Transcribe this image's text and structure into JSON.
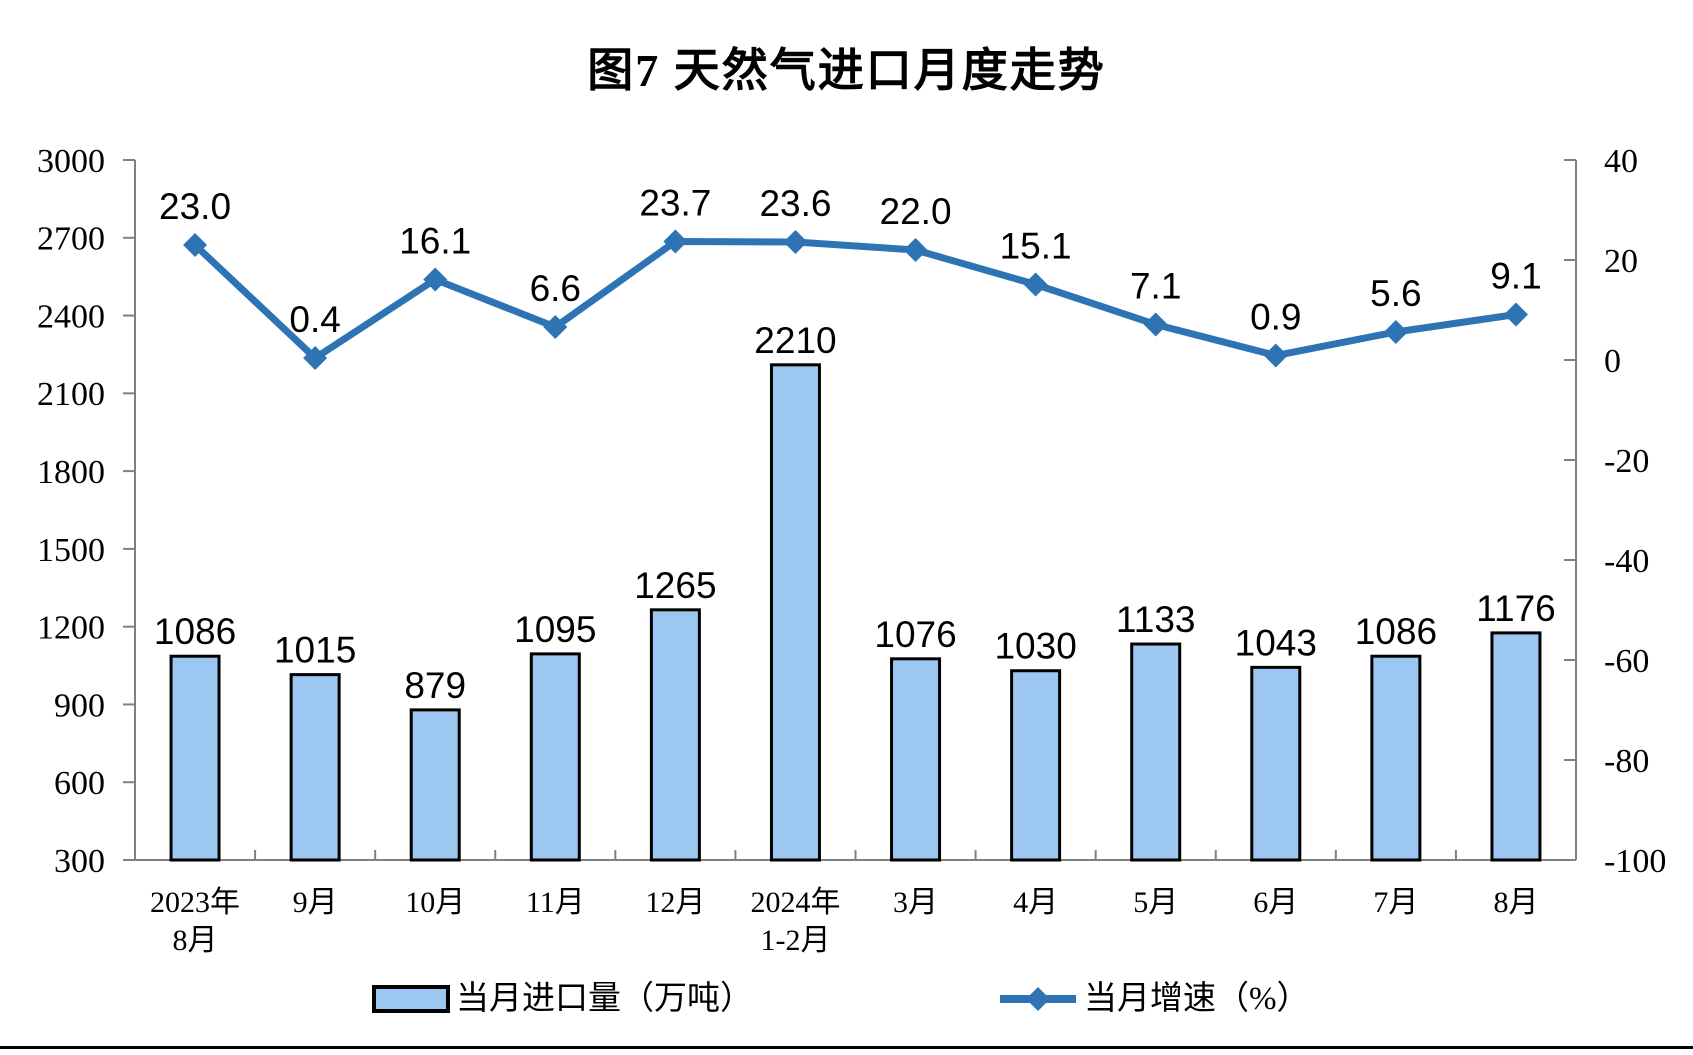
{
  "title": "图7 天然气进口月度走势",
  "legend": {
    "items": [
      {
        "label": "当月进口量（万吨）",
        "swatch": "bar"
      },
      {
        "label": "当月增速（%）",
        "swatch": "line"
      }
    ]
  },
  "chart_data": {
    "type": "combo-bar-line",
    "title": "图7 天然气进口月度走势",
    "grid": false,
    "legend_position": "bottom",
    "categories": [
      [
        "2023年",
        "8月"
      ],
      [
        "9月"
      ],
      [
        "10月"
      ],
      [
        "11月"
      ],
      [
        "12月"
      ],
      [
        "2024年",
        "1-2月"
      ],
      [
        "3月"
      ],
      [
        "4月"
      ],
      [
        "5月"
      ],
      [
        "6月"
      ],
      [
        "7月"
      ],
      [
        "8月"
      ]
    ],
    "left_axis": {
      "min": 300,
      "max": 3000,
      "step": 300,
      "ticks": [
        "3000",
        "2700",
        "2400",
        "2100",
        "1800",
        "1500",
        "1200",
        "900",
        "600",
        "300"
      ]
    },
    "right_axis": {
      "min": -100,
      "max": 40,
      "step": 20,
      "ticks": [
        "40",
        "20",
        "0",
        "-20",
        "-40",
        "-60",
        "-80",
        "-100"
      ]
    },
    "axis_color": "#808080",
    "series": [
      {
        "name": "当月进口量（万吨）",
        "type": "bar",
        "axis": "left",
        "fill": "#9CC7F0",
        "stroke": "#000000",
        "values": [
          1086,
          1015,
          879,
          1095,
          1265,
          2210,
          1076,
          1030,
          1133,
          1043,
          1086,
          1176
        ],
        "labels": [
          "1086",
          "1015",
          "879",
          "1095",
          "1265",
          "2210",
          "1076",
          "1030",
          "1133",
          "1043",
          "1086",
          "1176"
        ]
      },
      {
        "name": "当月增速（%）",
        "type": "line",
        "axis": "right",
        "color": "#2E74B5",
        "values": [
          23.0,
          0.4,
          16.1,
          6.6,
          23.7,
          23.6,
          22.0,
          15.1,
          7.1,
          0.9,
          5.6,
          9.1
        ],
        "labels": [
          "23.0",
          "0.4",
          "16.1",
          "6.6",
          "23.7",
          "23.6",
          "22.0",
          "15.1",
          "7.1",
          "0.9",
          "5.6",
          "9.1"
        ]
      }
    ]
  }
}
